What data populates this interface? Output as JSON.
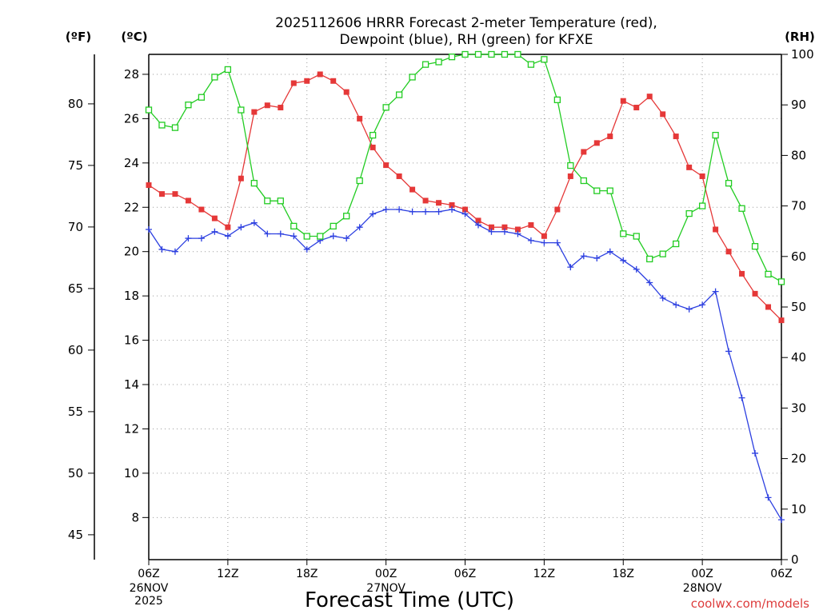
{
  "chart_data": {
    "type": "line",
    "title_line1": "2025112606 HRRR Forecast 2-meter Temperature (red),",
    "title_line2": "Dewpoint (blue), RH (green) for KFXE",
    "xlabel": "Forecast Time (UTC)",
    "units": {
      "fahrenheit": "(ºF)",
      "celsius": "(ºC)",
      "rh": "(RH)"
    },
    "x_ticks": [
      "06Z",
      "12Z",
      "18Z",
      "00Z",
      "06Z",
      "12Z",
      "18Z",
      "00Z",
      "06Z"
    ],
    "x_date_labels": [
      {
        "tick_index": 0,
        "lines": [
          "26NOV",
          "2025"
        ]
      },
      {
        "tick_index": 3,
        "lines": [
          "27NOV"
        ]
      },
      {
        "tick_index": 7,
        "lines": [
          "28NOV"
        ]
      }
    ],
    "hours_range": [
      0,
      48
    ],
    "celsius_range": [
      6.1,
      28.9
    ],
    "celsius_ticks": [
      8,
      10,
      12,
      14,
      16,
      18,
      20,
      22,
      24,
      26,
      28
    ],
    "fahrenheit_ticks": [
      45,
      50,
      55,
      60,
      65,
      70,
      75,
      80
    ],
    "rh_range": [
      0,
      100
    ],
    "rh_ticks": [
      0,
      10,
      20,
      30,
      40,
      50,
      60,
      70,
      80,
      90,
      100
    ],
    "grid": true,
    "credit": "coolwx.com/models",
    "colors": {
      "temperature": "#e53838",
      "dewpoint": "#2c3fe0",
      "rh": "#22cc22"
    },
    "series": [
      {
        "name": "Temperature",
        "unit": "C",
        "marker": "filled-square",
        "values": [
          23.0,
          22.6,
          22.6,
          22.3,
          21.9,
          21.5,
          21.1,
          23.3,
          26.3,
          26.6,
          26.5,
          27.6,
          27.7,
          28.0,
          27.7,
          27.2,
          26.0,
          24.7,
          23.9,
          23.4,
          22.8,
          22.3,
          22.2,
          22.1,
          21.9,
          21.4,
          21.1,
          21.1,
          21.0,
          21.2,
          20.7,
          21.9,
          23.4,
          24.5,
          24.9,
          25.2,
          26.8,
          26.5,
          27.0,
          26.2,
          25.2,
          23.8,
          23.4,
          21.0,
          20.0,
          19.0,
          18.1,
          17.5,
          16.9
        ]
      },
      {
        "name": "Dewpoint",
        "unit": "C",
        "marker": "plus",
        "values": [
          21.0,
          20.1,
          20.0,
          20.6,
          20.6,
          20.9,
          20.7,
          21.1,
          21.3,
          20.8,
          20.8,
          20.7,
          20.1,
          20.5,
          20.7,
          20.6,
          21.1,
          21.7,
          21.9,
          21.9,
          21.8,
          21.8,
          21.8,
          21.9,
          21.7,
          21.2,
          20.9,
          20.9,
          20.8,
          20.5,
          20.4,
          20.4,
          19.3,
          19.8,
          19.7,
          20.0,
          19.6,
          19.2,
          18.6,
          17.9,
          17.6,
          17.4,
          17.6,
          18.2,
          15.5,
          13.4,
          10.9,
          8.9,
          7.9
        ]
      },
      {
        "name": "RH",
        "unit": "%",
        "marker": "open-square",
        "values": [
          89,
          86,
          85.5,
          90,
          91.5,
          95.5,
          97,
          89,
          74.5,
          71,
          71,
          66,
          64,
          64,
          66,
          68,
          75,
          84,
          89.5,
          92,
          95.5,
          98,
          98.5,
          99.5,
          100,
          100,
          100,
          100,
          100,
          98,
          99,
          91,
          78,
          75,
          73,
          73,
          64.5,
          64,
          59.5,
          60.5,
          62.5,
          68.5,
          70,
          84,
          74.5,
          69.5,
          62,
          56.5,
          55
        ]
      }
    ]
  }
}
